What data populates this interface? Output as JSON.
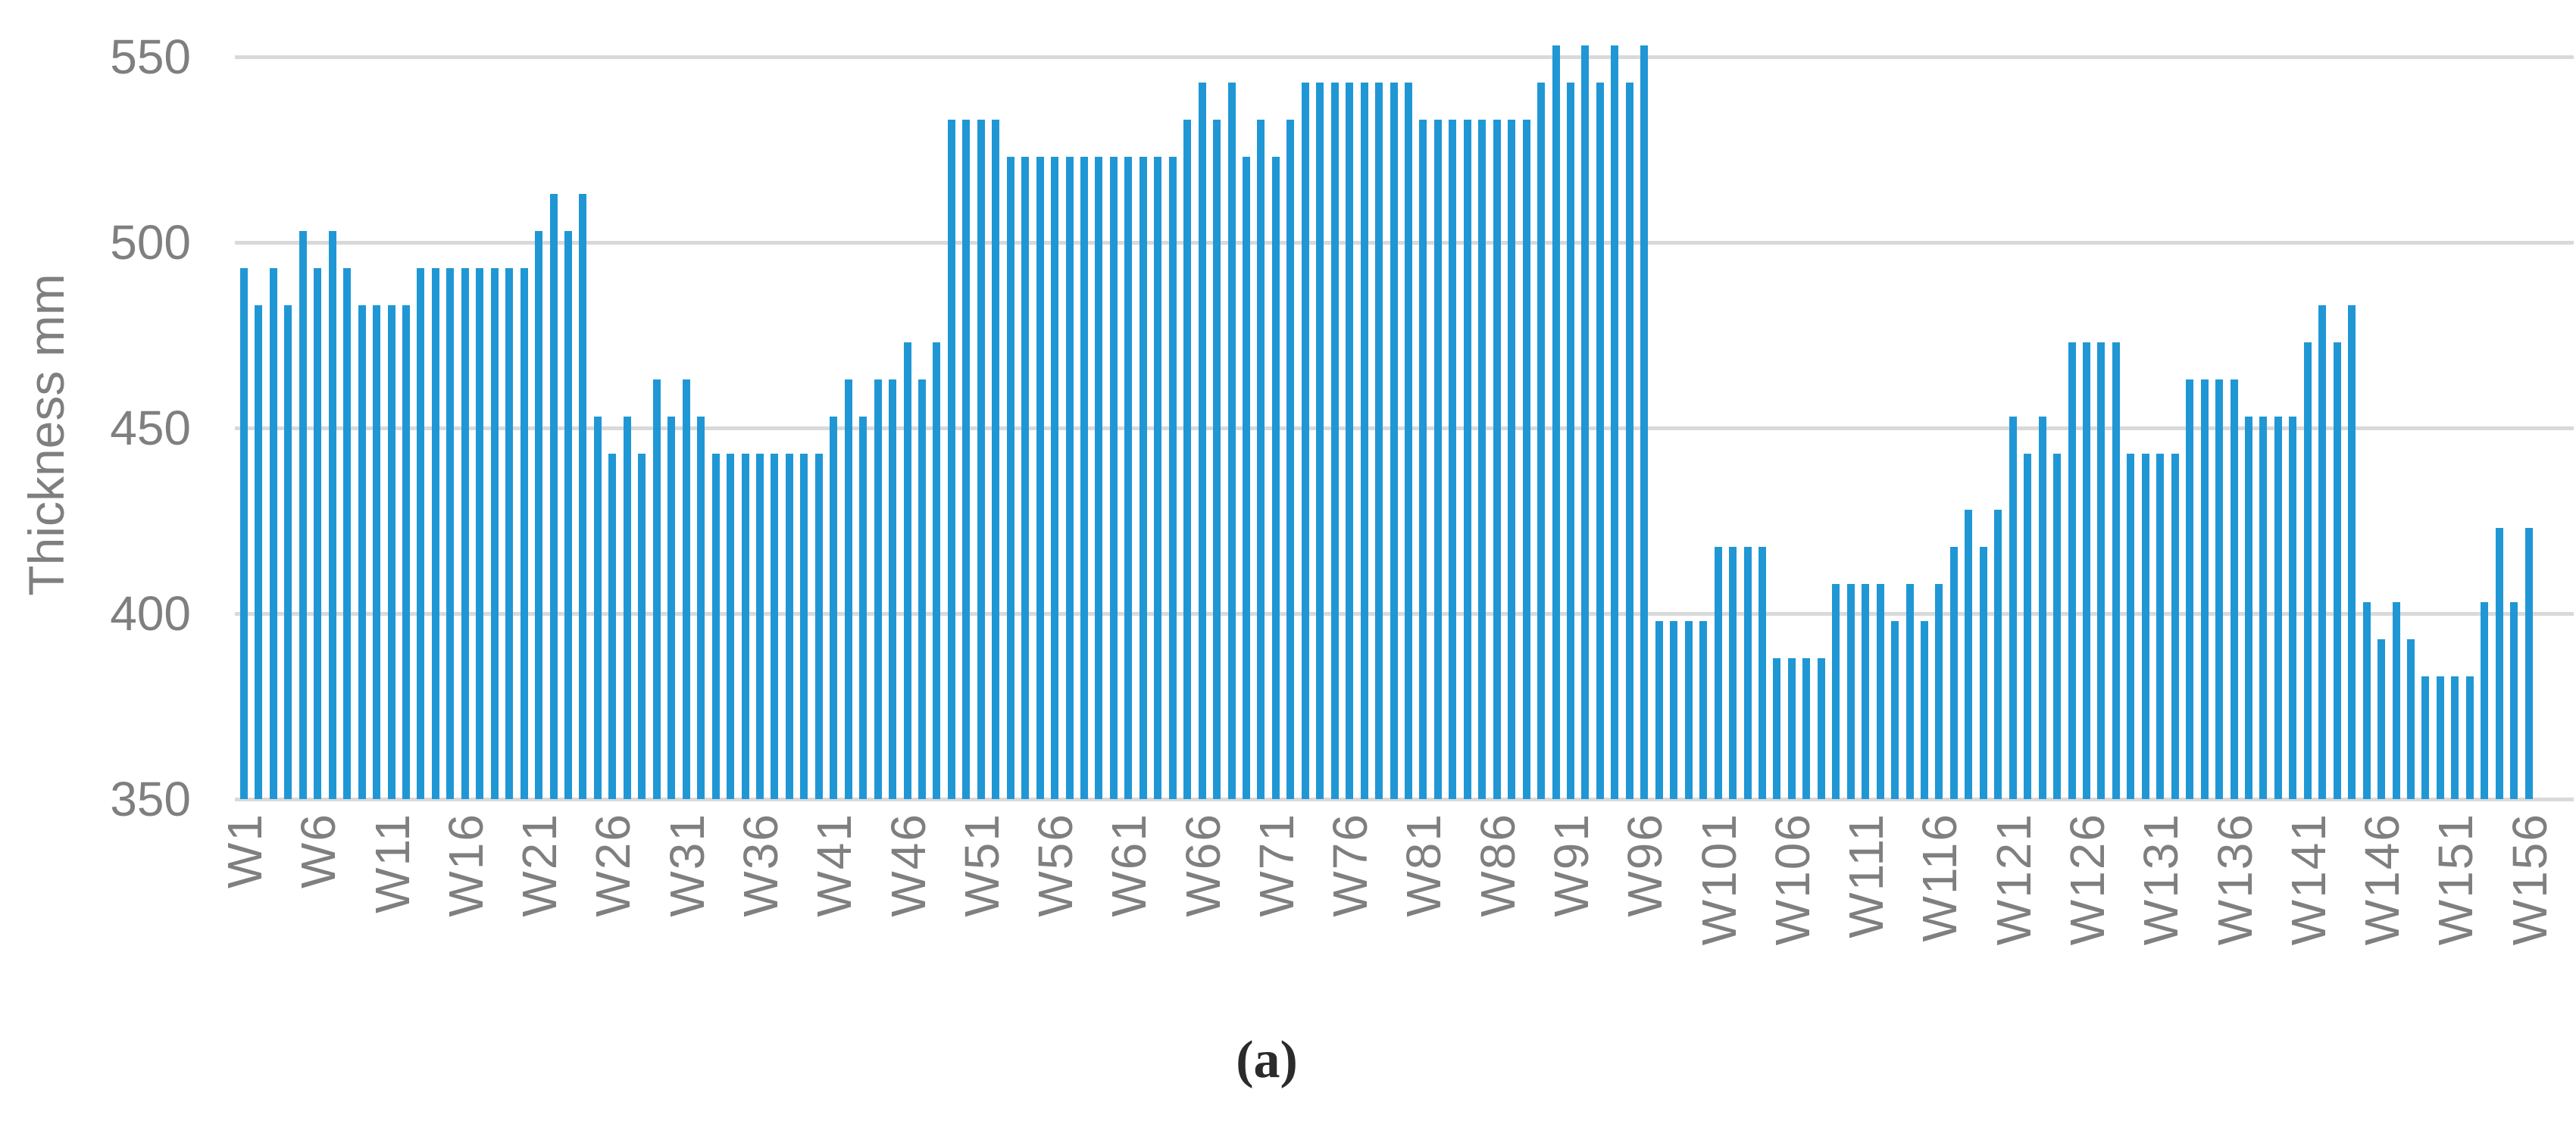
{
  "chart_data": {
    "type": "bar",
    "title": "",
    "xlabel": "",
    "ylabel": "Thickness mm",
    "caption": "(a)",
    "ylim": [
      350,
      550
    ],
    "yticks": [
      550,
      500,
      450,
      400,
      350
    ],
    "x_tick_step": 5,
    "x_tick_labels": [
      "W1",
      "W6",
      "W11",
      "W16",
      "W21",
      "W26",
      "W31",
      "W36",
      "W41",
      "W46",
      "W51",
      "W56",
      "W61",
      "W66",
      "W71",
      "W76",
      "W81",
      "W86",
      "W91",
      "W96",
      "W101",
      "W106",
      "W111",
      "W116",
      "W121",
      "W126",
      "W131",
      "W136",
      "W141",
      "W146",
      "W151",
      "W156"
    ],
    "values": [
      493,
      483,
      493,
      483,
      503,
      493,
      503,
      493,
      483,
      483,
      483,
      483,
      493,
      493,
      493,
      493,
      493,
      493,
      493,
      493,
      503,
      513,
      503,
      513,
      453,
      443,
      453,
      443,
      463,
      453,
      463,
      453,
      443,
      443,
      443,
      443,
      443,
      443,
      443,
      443,
      453,
      463,
      453,
      463,
      463,
      473,
      463,
      473,
      533,
      533,
      533,
      533,
      523,
      523,
      523,
      523,
      523,
      523,
      523,
      523,
      523,
      523,
      523,
      523,
      533,
      543,
      533,
      543,
      523,
      533,
      523,
      533,
      543,
      543,
      543,
      543,
      543,
      543,
      543,
      543,
      533,
      533,
      533,
      533,
      533,
      533,
      533,
      533,
      543,
      553,
      543,
      553,
      543,
      553,
      543,
      553,
      398,
      398,
      398,
      398,
      418,
      418,
      418,
      418,
      388,
      388,
      388,
      388,
      408,
      408,
      408,
      408,
      398,
      408,
      398,
      408,
      418,
      428,
      418,
      428,
      453,
      443,
      453,
      443,
      473,
      473,
      473,
      473,
      443,
      443,
      443,
      443,
      463,
      463,
      463,
      463,
      453,
      453,
      453,
      453,
      473,
      483,
      473,
      483,
      403,
      393,
      403,
      393,
      383,
      383,
      383,
      383,
      403,
      423,
      403,
      423
    ],
    "bar_color": "#2097d5",
    "gridline_color": "#d9d9d9",
    "axis_text_color": "#7f7f7f",
    "legend": "none",
    "grid": "horizontal"
  }
}
